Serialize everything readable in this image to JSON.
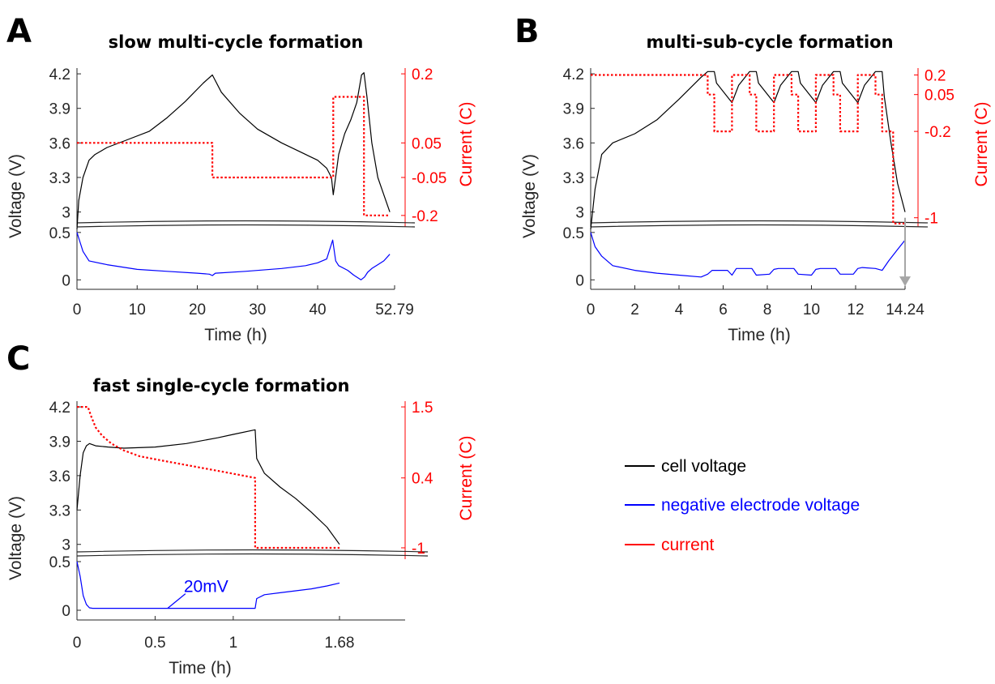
{
  "colors": {
    "cell": "#000000",
    "negative": "#0000ff",
    "current": "#ff0000",
    "arrow": "#a6a6a6"
  },
  "legend": {
    "cell": "cell voltage",
    "negative": "negative electrode voltage",
    "current": "current"
  },
  "chart_data": [
    {
      "type": "line",
      "panel": "A",
      "title": "slow multi-cycle formation",
      "xlabel": "Time (h)",
      "ylabel": "Voltage (V)",
      "ylabel_right": "Current (C)",
      "xlim": [
        0,
        52.79
      ],
      "x_ticks": [
        0,
        10,
        20,
        30,
        40,
        52.79
      ],
      "x_tick_labels": [
        "0",
        "10",
        "20",
        "30",
        "40",
        "52.79"
      ],
      "ylim_top": [
        2.8,
        4.25
      ],
      "y_ticks_top": [
        3,
        3.3,
        3.6,
        3.9,
        4.2
      ],
      "y_tick_labels_top": [
        "3",
        "3.3",
        "3.6",
        "3.9",
        "4.2"
      ],
      "ylim_bottom": [
        -0.1,
        0.55
      ],
      "y_ticks_bottom": [
        0,
        0.5
      ],
      "y_tick_labels_bottom": [
        "0",
        "0.5"
      ],
      "current_ticks": [
        {
          "label": "0.2",
          "y": 4.2
        },
        {
          "label": "0.05",
          "y": 3.6
        },
        {
          "label": "-0.05",
          "y": 3.3
        },
        {
          "label": "-0.2",
          "y": 2.97
        }
      ],
      "series": [
        {
          "name": "cell voltage",
          "axis": "top",
          "x": [
            0,
            0.3,
            1,
            2,
            3,
            5,
            8,
            12,
            15,
            18,
            21,
            22.5,
            24,
            27,
            30,
            34,
            38,
            40,
            41.5,
            42.3,
            42.6,
            43.5,
            44.5,
            45.5,
            46.5,
            47.3,
            47.7,
            48.2,
            49,
            50,
            51,
            52
          ],
          "y": [
            2.85,
            3.1,
            3.3,
            3.45,
            3.5,
            3.56,
            3.62,
            3.7,
            3.82,
            3.96,
            4.12,
            4.19,
            4.04,
            3.86,
            3.72,
            3.6,
            3.5,
            3.45,
            3.38,
            3.3,
            3.15,
            3.5,
            3.68,
            3.8,
            3.95,
            4.19,
            4.21,
            4.0,
            3.6,
            3.3,
            3.15,
            3.0
          ]
        },
        {
          "name": "current",
          "axis": "top",
          "step": true,
          "x": [
            0,
            22.5,
            22.5,
            42.6,
            42.6,
            47.7,
            47.7,
            52
          ],
          "y": [
            3.6,
            3.6,
            3.3,
            3.3,
            4.0,
            4.0,
            2.97,
            2.97
          ]
        },
        {
          "name": "negative electrode voltage",
          "axis": "bottom",
          "x": [
            0,
            0.5,
            1,
            2,
            5,
            10,
            15,
            20,
            22,
            22.5,
            23,
            28,
            34,
            38,
            40,
            41.5,
            42.5,
            43,
            43.5,
            45,
            46,
            47.2,
            47.8,
            48.3,
            49,
            50,
            51,
            52
          ],
          "y": [
            0.5,
            0.4,
            0.3,
            0.2,
            0.16,
            0.11,
            0.09,
            0.07,
            0.06,
            0.045,
            0.07,
            0.09,
            0.12,
            0.15,
            0.18,
            0.22,
            0.42,
            0.2,
            0.15,
            0.1,
            0.05,
            0.0,
            0.03,
            0.08,
            0.12,
            0.16,
            0.2,
            0.27
          ]
        }
      ]
    },
    {
      "type": "line",
      "panel": "B",
      "title": "multi-sub-cycle formation",
      "xlabel": "Time (h)",
      "ylabel": "Voltage (V)",
      "ylabel_right": "Current (C)",
      "xlim": [
        0,
        14.24
      ],
      "x_ticks": [
        0,
        2,
        4,
        6,
        8,
        10,
        12,
        14.24
      ],
      "x_tick_labels": [
        "0",
        "2",
        "4",
        "6",
        "8",
        "10",
        "12",
        "14.24"
      ],
      "ylim_top": [
        2.8,
        4.25
      ],
      "y_ticks_top": [
        3,
        3.3,
        3.6,
        3.9,
        4.2
      ],
      "y_tick_labels_top": [
        "3",
        "3.3",
        "3.6",
        "3.9",
        "4.2"
      ],
      "ylim_bottom": [
        -0.1,
        0.55
      ],
      "y_ticks_bottom": [
        0,
        0.5
      ],
      "y_tick_labels_bottom": [
        "0",
        "0.5"
      ],
      "current_ticks": [
        {
          "label": "0.2",
          "y": 4.19
        },
        {
          "label": "0.05",
          "y": 4.02
        },
        {
          "label": "-0.2",
          "y": 3.7
        },
        {
          "label": "-1",
          "y": 2.95
        }
      ],
      "series": [
        {
          "name": "cell voltage",
          "axis": "top",
          "x": [
            0,
            0.2,
            0.5,
            1,
            2,
            3,
            4,
            5,
            5.3,
            5.6,
            5.7,
            6.4,
            6.7,
            7.2,
            7.5,
            7.6,
            8.3,
            8.6,
            9.1,
            9.4,
            9.5,
            10.2,
            10.5,
            11,
            11.3,
            11.4,
            12.1,
            12.4,
            12.9,
            13.2,
            13.3,
            13.6,
            13.9,
            14.24
          ],
          "y": [
            2.85,
            3.2,
            3.5,
            3.6,
            3.68,
            3.8,
            3.98,
            4.17,
            4.22,
            4.22,
            4.12,
            3.95,
            4.1,
            4.22,
            4.22,
            4.12,
            3.95,
            4.1,
            4.22,
            4.22,
            4.12,
            3.95,
            4.1,
            4.22,
            4.22,
            4.12,
            3.95,
            4.1,
            4.22,
            4.22,
            4.0,
            3.6,
            3.25,
            3.0
          ]
        },
        {
          "name": "current",
          "axis": "top",
          "step": true,
          "x": [
            0,
            5.3,
            5.3,
            5.6,
            5.6,
            6.4,
            6.4,
            7.2,
            7.2,
            7.5,
            7.5,
            8.3,
            8.3,
            9.1,
            9.1,
            9.4,
            9.4,
            10.2,
            10.2,
            11,
            11,
            11.3,
            11.3,
            12.1,
            12.1,
            12.9,
            12.9,
            13.2,
            13.2,
            13.7,
            13.7,
            14.24
          ],
          "y": [
            4.19,
            4.19,
            4.02,
            4.02,
            3.7,
            3.7,
            4.19,
            4.19,
            4.02,
            4.02,
            3.7,
            3.7,
            4.19,
            4.19,
            4.02,
            4.02,
            3.7,
            3.7,
            4.19,
            4.19,
            4.02,
            4.02,
            3.7,
            3.7,
            4.19,
            4.19,
            4.02,
            4.02,
            3.7,
            3.7,
            2.9,
            2.9
          ]
        },
        {
          "name": "negative electrode voltage",
          "axis": "bottom",
          "x": [
            0,
            0.2,
            0.5,
            1,
            2,
            3,
            4,
            5,
            5.3,
            5.5,
            6.2,
            6.4,
            6.6,
            7.3,
            7.5,
            8.1,
            8.3,
            8.5,
            9.2,
            9.4,
            10,
            10.2,
            10.4,
            11.1,
            11.3,
            11.9,
            12.1,
            12.3,
            12.9,
            13.2,
            13.5,
            13.9,
            14.24
          ],
          "y": [
            0.5,
            0.35,
            0.25,
            0.15,
            0.1,
            0.07,
            0.05,
            0.03,
            0.06,
            0.1,
            0.1,
            0.05,
            0.12,
            0.12,
            0.05,
            0.06,
            0.11,
            0.12,
            0.12,
            0.06,
            0.05,
            0.11,
            0.12,
            0.12,
            0.06,
            0.06,
            0.12,
            0.13,
            0.12,
            0.1,
            0.2,
            0.32,
            0.42
          ]
        },
        {
          "name": "",
          "axis": "arrow",
          "x": [
            14.24,
            14.24
          ],
          "y_top": 2.95,
          "y_bottom": -0.05
        }
      ]
    },
    {
      "type": "line",
      "panel": "C",
      "title": "fast single-cycle formation",
      "xlabel": "Time (h)",
      "ylabel": "Voltage (V)",
      "ylabel_right": "Current (C)",
      "xlim": [
        0,
        2.1
      ],
      "x_ticks": [
        0,
        0.5,
        1,
        1.68
      ],
      "x_tick_labels": [
        "0",
        "0.5",
        "1",
        "1.68"
      ],
      "ylim_top": [
        2.8,
        4.25
      ],
      "y_ticks_top": [
        3,
        3.3,
        3.6,
        3.9,
        4.2
      ],
      "y_tick_labels_top": [
        "3",
        "3.3",
        "3.6",
        "3.9",
        "4.2"
      ],
      "ylim_bottom": [
        -0.1,
        0.55
      ],
      "y_ticks_bottom": [
        0,
        0.5
      ],
      "y_tick_labels_bottom": [
        "0",
        "0.5"
      ],
      "current_ticks": [
        {
          "label": "1.5",
          "y": 4.2
        },
        {
          "label": "0.4",
          "y": 3.58
        },
        {
          "label": "-1",
          "y": 2.97
        }
      ],
      "annotation": {
        "text": "20mV",
        "x": 0.58,
        "y": 0.02
      },
      "series": [
        {
          "name": "cell voltage",
          "axis": "top",
          "x": [
            0,
            0.02,
            0.04,
            0.06,
            0.08,
            0.12,
            0.2,
            0.3,
            0.5,
            0.7,
            0.9,
            1.0,
            1.14,
            1.15,
            1.2,
            1.3,
            1.4,
            1.5,
            1.6,
            1.68
          ],
          "y": [
            3.3,
            3.6,
            3.8,
            3.86,
            3.88,
            3.86,
            3.85,
            3.84,
            3.85,
            3.88,
            3.93,
            3.96,
            4.0,
            3.75,
            3.62,
            3.5,
            3.4,
            3.28,
            3.15,
            3.0
          ]
        },
        {
          "name": "current",
          "axis": "top",
          "x": [
            0,
            0.07,
            0.09,
            0.12,
            0.16,
            0.22,
            0.3,
            0.4,
            0.55,
            0.75,
            0.95,
            1.14,
            1.14,
            1.68
          ],
          "y": [
            4.2,
            4.2,
            4.12,
            4.02,
            3.95,
            3.88,
            3.82,
            3.77,
            3.73,
            3.68,
            3.63,
            3.58,
            2.97,
            2.97
          ]
        },
        {
          "name": "negative electrode voltage",
          "axis": "bottom",
          "x": [
            0,
            0.02,
            0.04,
            0.06,
            0.08,
            0.1,
            0.5,
            1.0,
            1.14,
            1.15,
            1.2,
            1.3,
            1.4,
            1.5,
            1.6,
            1.68
          ],
          "y": [
            0.5,
            0.35,
            0.15,
            0.06,
            0.025,
            0.02,
            0.02,
            0.02,
            0.02,
            0.12,
            0.16,
            0.18,
            0.2,
            0.22,
            0.25,
            0.28
          ]
        }
      ]
    }
  ]
}
